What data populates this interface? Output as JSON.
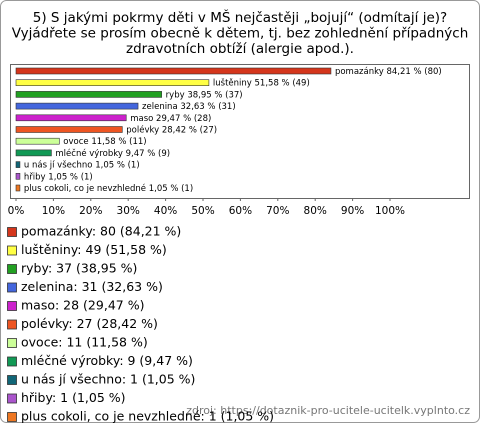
{
  "chart_data": {
    "type": "bar",
    "orientation": "horizontal",
    "title": [
      "5) S jakými pokrmy děti v MŠ nejčastěji „bojují“ (odmítají je)?",
      "Vyjádřete se prosím obecně k dětem, tj. bez zohlednění případných",
      "zdravotních obtíží (alergie apod.)."
    ],
    "categories": [
      "pomazánky",
      "luštěniny",
      "ryby",
      "zelenina",
      "maso",
      "polévky",
      "ovoce",
      "mléčné výrobky",
      "u nás jí všechno",
      "hřiby",
      "plus cokoli, co je nevzhledné"
    ],
    "values": [
      84.21,
      51.58,
      38.95,
      32.63,
      29.47,
      28.42,
      11.58,
      9.47,
      1.05,
      1.05,
      1.05
    ],
    "value_labels": [
      "84,21 % (80)",
      "51,58 % (49)",
      "38,95 % (37)",
      "32,63 % (31)",
      "29,47 % (28)",
      "28,42 % (27)",
      "11,58 % (11)",
      "9,47 % (9)",
      "1,05 % (1)",
      "1,05 % (1)",
      "1,05 % (1)"
    ],
    "legend_labels": [
      "pomazánky: 80 (84,21 %)",
      "luštěniny: 49 (51,58 %)",
      "ryby: 37 (38,95 %)",
      "zelenina: 31 (32,63 %)",
      "maso: 28 (29,47 %)",
      "polévky: 27 (28,42 %)",
      "ovoce: 11 (11,58 %)",
      "mléčné výrobky: 9 (9,47 %)",
      "u nás jí všechno: 1 (1,05 %)",
      "hřiby: 1 (1,05 %)",
      "plus cokoli, co je nevzhledné: 1 (1,05 %)"
    ],
    "colors": [
      "#d4361c",
      "#ffff44",
      "#22a022",
      "#4466dd",
      "#cc22cc",
      "#ee5522",
      "#ccff99",
      "#119955",
      "#116677",
      "#aa55cc",
      "#ee7722"
    ],
    "xlim": [
      0,
      100
    ],
    "xticks": [
      {
        "value": 0,
        "label": "0%"
      },
      {
        "value": 10,
        "label": "10%"
      },
      {
        "value": 20,
        "label": "20%"
      },
      {
        "value": 30,
        "label": "30%"
      },
      {
        "value": 40,
        "label": "40%"
      },
      {
        "value": 50,
        "label": "50%"
      },
      {
        "value": 60,
        "label": "60%"
      },
      {
        "value": 70,
        "label": "70%"
      },
      {
        "value": 80,
        "label": "80%"
      },
      {
        "value": 90,
        "label": "90%"
      },
      {
        "value": 100,
        "label": "100%"
      }
    ],
    "source": "zdroj: https://dotaznik-pro-ucitele-ucitelk.vyplnto.cz"
  }
}
